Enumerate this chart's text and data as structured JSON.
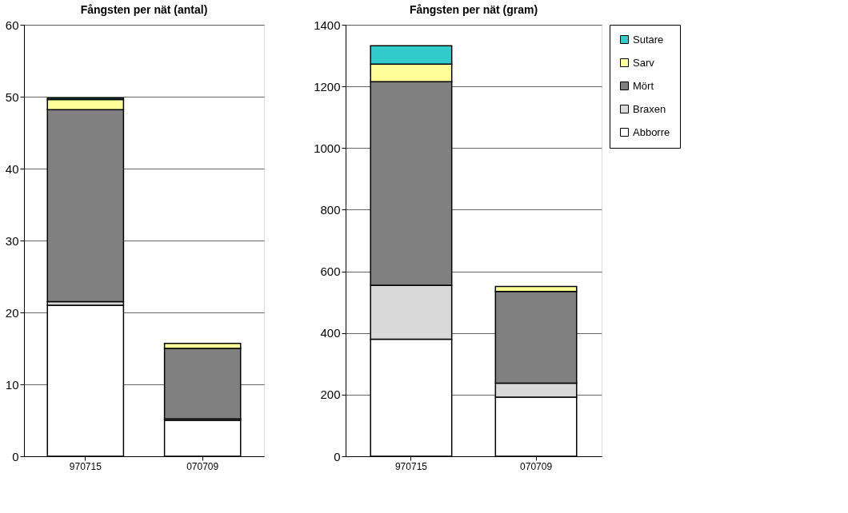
{
  "chart_data": [
    {
      "type": "bar",
      "title": "Fångsten per nät (antal)",
      "stacked": true,
      "categories": [
        "970715",
        "070709"
      ],
      "series": [
        {
          "color": "#ffffff",
          "values": [
            21,
            5
          ]
        },
        {
          "color": "#d9d9d9",
          "values": [
            0.5,
            0.2
          ]
        },
        {
          "color": "#808080",
          "values": [
            26.7,
            9.8
          ]
        },
        {
          "color": "#ffff99",
          "values": [
            1.4,
            0.7
          ]
        },
        {
          "color": "#33cccc",
          "values": [
            0.2,
            null
          ]
        }
      ],
      "ylim": [
        0,
        60
      ],
      "yticks": [
        0,
        10,
        20,
        30,
        40,
        50,
        60
      ],
      "grid": "y",
      "legend": false
    },
    {
      "type": "bar",
      "title": "Fångsten per nät (gram)",
      "stacked": true,
      "categories": [
        "970715",
        "070709"
      ],
      "series": [
        {
          "name": "Abborre",
          "color": "#ffffff",
          "values": [
            380,
            192
          ]
        },
        {
          "name": "Braxen",
          "color": "#d9d9d9",
          "values": [
            175,
            45
          ]
        },
        {
          "name": "Mört",
          "color": "#808080",
          "values": [
            660,
            298
          ]
        },
        {
          "name": "Sarv",
          "color": "#ffff99",
          "values": [
            57,
            16
          ]
        },
        {
          "name": "Sutare",
          "color": "#33cccc",
          "values": [
            60,
            null
          ]
        }
      ],
      "ylim": [
        0,
        1400
      ],
      "yticks": [
        0,
        200,
        400,
        600,
        800,
        1000,
        1200,
        1400
      ],
      "grid": "y",
      "legend": "right"
    }
  ]
}
